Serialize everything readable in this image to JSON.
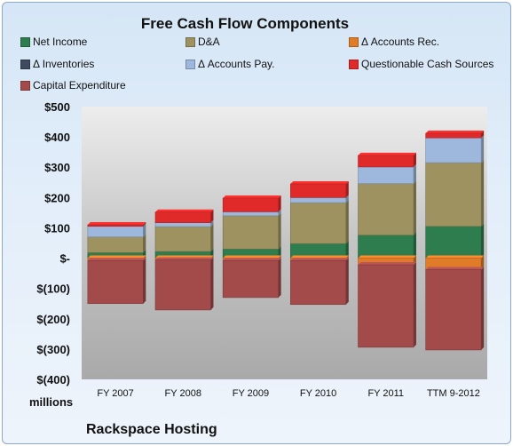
{
  "chart_data": {
    "type": "bar",
    "stacked": true,
    "title": "Free Cash Flow Components",
    "units_label": "millions",
    "company": "Rackspace Hosting",
    "categories": [
      "FY 2007",
      "FY 2008",
      "FY 2009",
      "FY 2010",
      "FY 2011",
      "TTM 9-2012"
    ],
    "ylim": [
      -400,
      500
    ],
    "yticks": [
      {
        "value": 500,
        "label": "$500"
      },
      {
        "value": 400,
        "label": "$400"
      },
      {
        "value": 300,
        "label": "$300"
      },
      {
        "value": 200,
        "label": "$200"
      },
      {
        "value": 100,
        "label": "$100"
      },
      {
        "value": 0,
        "label": "$-"
      },
      {
        "value": -100,
        "label": "$(100)"
      },
      {
        "value": -200,
        "label": "$(200)"
      },
      {
        "value": -300,
        "label": "$(300)"
      },
      {
        "value": -400,
        "label": "$(400)"
      }
    ],
    "legend_position": "top",
    "grid": false,
    "series": [
      {
        "name": "Net Income",
        "color": "#2e7d4f",
        "values": [
          18,
          22,
          30,
          48,
          76,
          105
        ]
      },
      {
        "name": "D&A",
        "color": "#9e9360",
        "values": [
          52,
          82,
          110,
          135,
          170,
          210
        ]
      },
      {
        "name": "Δ Accounts Rec.",
        "color": "#e07b28",
        "values": [
          -8,
          -6,
          -8,
          -8,
          -22,
          -38
        ]
      },
      {
        "name": "Δ Inventories",
        "color": "#3f4a5e",
        "values": [
          0,
          0,
          0,
          0,
          0,
          0
        ]
      },
      {
        "name": "Δ Accounts Pay.",
        "color": "#9db8dc",
        "values": [
          35,
          13,
          13,
          17,
          55,
          82
        ]
      },
      {
        "name": "Questionable Cash Sources",
        "color": "#e02a2a",
        "values": [
          5,
          35,
          45,
          45,
          38,
          15
        ]
      },
      {
        "name": "Capital Expenditure",
        "color": "#a34b4b",
        "values": [
          -142,
          -165,
          -122,
          -145,
          -272,
          -265
        ]
      }
    ]
  }
}
